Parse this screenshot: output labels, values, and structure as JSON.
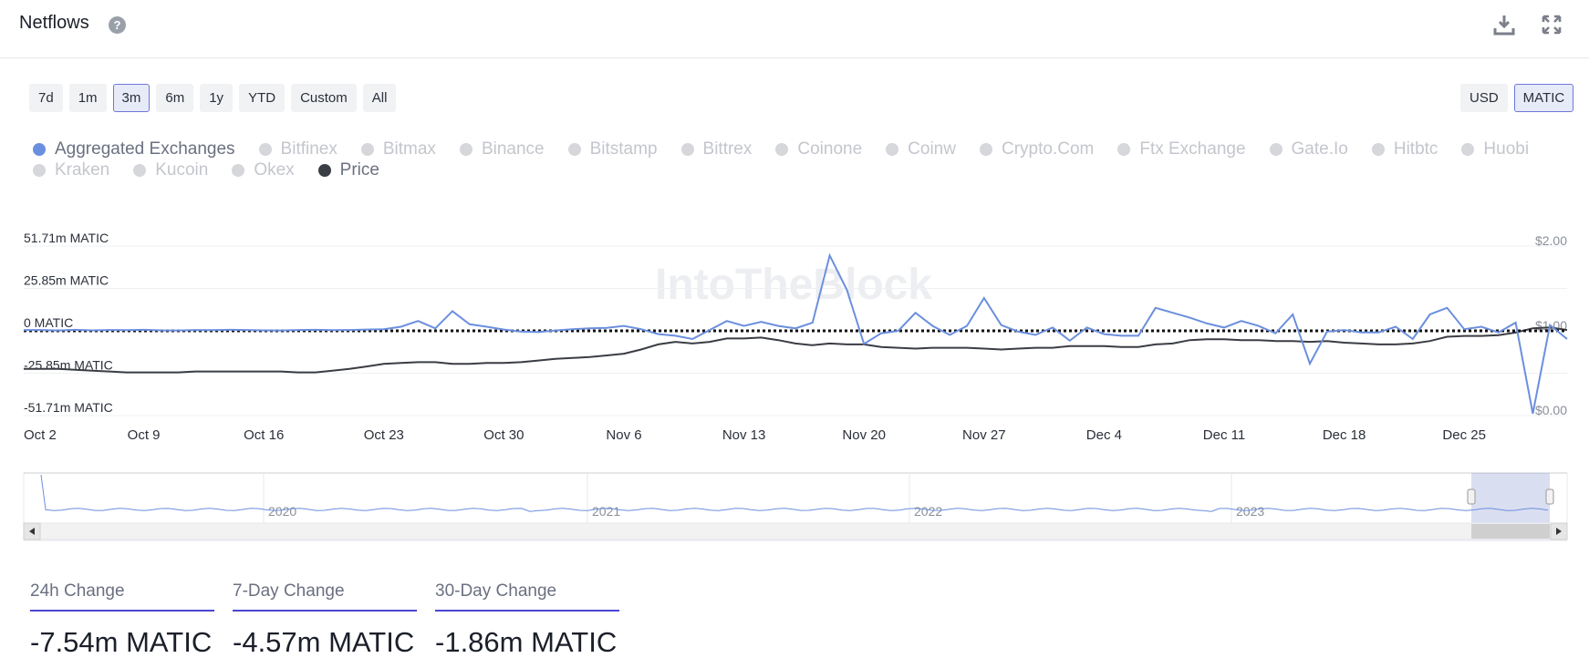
{
  "header": {
    "title": "Netflows",
    "help_icon": "question-circle-icon",
    "download_icon": "download-icon",
    "expand_icon": "expand-icon"
  },
  "ranges": [
    {
      "label": "7d",
      "active": false
    },
    {
      "label": "1m",
      "active": false
    },
    {
      "label": "3m",
      "active": true
    },
    {
      "label": "6m",
      "active": false
    },
    {
      "label": "1y",
      "active": false
    },
    {
      "label": "YTD",
      "active": false
    },
    {
      "label": "Custom",
      "active": false
    },
    {
      "label": "All",
      "active": false
    }
  ],
  "units": [
    {
      "label": "USD",
      "active": false
    },
    {
      "label": "MATIC",
      "active": true
    }
  ],
  "legend": [
    {
      "label": "Aggregated Exchanges",
      "active": true,
      "color": "#6b8fde"
    },
    {
      "label": "Bitfinex",
      "active": false
    },
    {
      "label": "Bitmax",
      "active": false
    },
    {
      "label": "Binance",
      "active": false
    },
    {
      "label": "Bitstamp",
      "active": false
    },
    {
      "label": "Bittrex",
      "active": false
    },
    {
      "label": "Coinone",
      "active": false
    },
    {
      "label": "Coinw",
      "active": false
    },
    {
      "label": "Crypto.Com",
      "active": false
    },
    {
      "label": "Ftx Exchange",
      "active": false
    },
    {
      "label": "Gate.Io",
      "active": false
    },
    {
      "label": "Hitbtc",
      "active": false
    },
    {
      "label": "Huobi",
      "active": false
    },
    {
      "label": "Kraken",
      "active": false
    },
    {
      "label": "Kucoin",
      "active": false
    },
    {
      "label": "Okex",
      "active": false
    },
    {
      "label": "Price",
      "active": true,
      "color": "#3a3d44"
    }
  ],
  "chart_data": {
    "type": "line",
    "y_left_ticks": [
      "51.71m MATIC",
      "25.85m MATIC",
      "0 MATIC",
      "-25.85m MATIC",
      "-51.71m MATIC"
    ],
    "y_left_range": [
      -51.71,
      51.71
    ],
    "y_right_ticks": [
      "$2.00",
      "$1.00",
      "$0.00"
    ],
    "y_right_range": [
      0,
      2
    ],
    "x_ticks": [
      "Oct 2",
      "Oct 9",
      "Oct 16",
      "Oct 23",
      "Oct 30",
      "Nov 6",
      "Nov 13",
      "Nov 20",
      "Nov 27",
      "Dec 4",
      "Dec 11",
      "Dec 18",
      "Dec 25"
    ],
    "x_start": "2023-10-02",
    "series": [
      {
        "name": "Aggregated Exchanges",
        "color": "#6b8fde",
        "unit": "m MATIC",
        "values": [
          0.5,
          0.5,
          0.2,
          0.6,
          0.3,
          0.5,
          0.4,
          0.6,
          0.3,
          0.2,
          0.5,
          0.4,
          0.6,
          0.5,
          0.3,
          0.2,
          0.5,
          0.6,
          0.4,
          0.5,
          0.8,
          1.0,
          2.5,
          6.0,
          1.5,
          12.0,
          4.0,
          2.5,
          0.8,
          -0.5,
          -0.8,
          0.2,
          1.0,
          1.5,
          1.8,
          3.0,
          1.0,
          -2.0,
          -3.0,
          -5.0,
          0.5,
          6.0,
          3.0,
          5.5,
          3.0,
          1.5,
          5.0,
          46.0,
          25.0,
          -8.0,
          -1.5,
          0.0,
          11.0,
          3.0,
          -2.5,
          3.0,
          20.0,
          3.5,
          -0.5,
          -2.5,
          2.0,
          -6.0,
          2.0,
          -2.0,
          -3.0,
          -3.0,
          14.0,
          11.0,
          8.0,
          4.5,
          2.0,
          6.0,
          3.0,
          -1.5,
          10.0,
          -20.0,
          -0.5,
          0.5,
          -1.0,
          -1.0,
          2.5,
          -5.0,
          10.0,
          14.0,
          1.0,
          2.5,
          -1.0,
          5.0,
          -50.5,
          3.5,
          -5.0
        ]
      },
      {
        "name": "Price",
        "color": "#3a3d44",
        "unit": "$",
        "values": [
          0.55,
          0.55,
          0.55,
          0.54,
          0.53,
          0.52,
          0.51,
          0.51,
          0.51,
          0.51,
          0.52,
          0.52,
          0.52,
          0.52,
          0.52,
          0.52,
          0.51,
          0.51,
          0.53,
          0.55,
          0.58,
          0.61,
          0.62,
          0.63,
          0.63,
          0.61,
          0.61,
          0.62,
          0.62,
          0.63,
          0.65,
          0.67,
          0.68,
          0.69,
          0.71,
          0.73,
          0.78,
          0.84,
          0.87,
          0.85,
          0.87,
          0.91,
          0.91,
          0.92,
          0.89,
          0.85,
          0.83,
          0.85,
          0.84,
          0.84,
          0.81,
          0.8,
          0.79,
          0.8,
          0.8,
          0.8,
          0.79,
          0.78,
          0.79,
          0.8,
          0.8,
          0.82,
          0.82,
          0.82,
          0.81,
          0.81,
          0.84,
          0.85,
          0.89,
          0.9,
          0.9,
          0.89,
          0.89,
          0.88,
          0.88,
          0.87,
          0.88,
          0.86,
          0.85,
          0.84,
          0.84,
          0.85,
          0.88,
          0.93,
          0.94,
          0.94,
          0.95,
          0.98,
          1.03,
          1.04,
          1.01
        ]
      }
    ],
    "zero_line": "dotted",
    "grid": true,
    "navigator": {
      "years": [
        "2020",
        "2021",
        "2022",
        "2023"
      ],
      "selected_range": "last 3 months"
    }
  },
  "watermark": "IntoTheBlock",
  "stats": [
    {
      "label": "24h Change",
      "value": "-7.54m MATIC"
    },
    {
      "label": "7-Day Change",
      "value": "-4.57m MATIC"
    },
    {
      "label": "30-Day Change",
      "value": "-1.86m MATIC"
    }
  ]
}
